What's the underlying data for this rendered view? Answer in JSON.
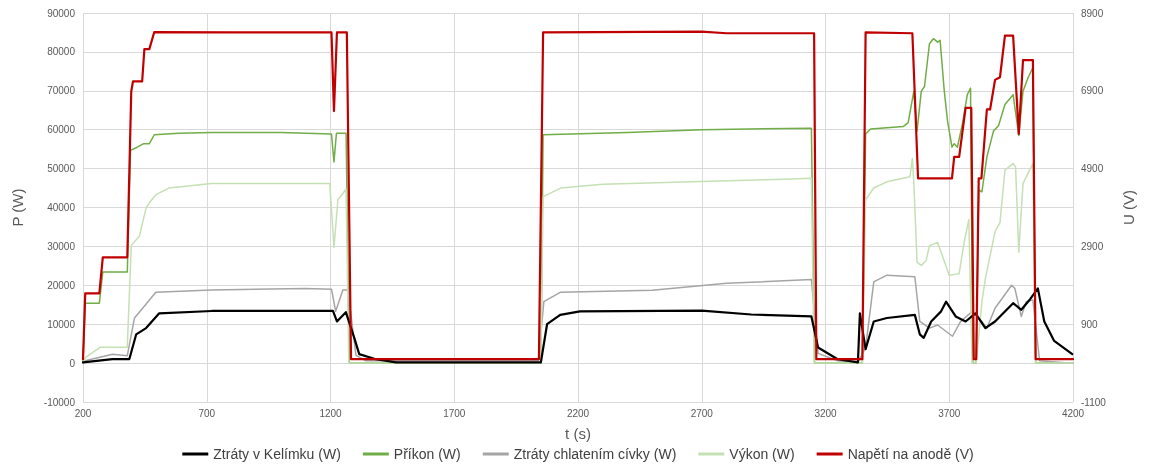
{
  "chart_data": {
    "type": "line",
    "xlabel": "t (s)",
    "ylabel": "P (W)",
    "y2label": "U (V)",
    "xlim": [
      200,
      4200
    ],
    "xticks": [
      200,
      700,
      1200,
      1700,
      2200,
      2700,
      3200,
      3700,
      4200
    ],
    "ylim": [
      -10000,
      90000
    ],
    "yticks": [
      -10000,
      0,
      10000,
      20000,
      30000,
      40000,
      50000,
      60000,
      70000,
      80000,
      90000
    ],
    "y2lim": [
      -1100,
      8900
    ],
    "y2ticks": [
      -1100,
      900,
      2900,
      4900,
      6900,
      8900
    ],
    "grid": true,
    "legend": "bottom",
    "marker": "none",
    "line_style": "solid",
    "series": [
      {
        "name": "Ztráty v Kelímku (W)",
        "color": "#000000",
        "x": [
          200,
          319,
          387,
          415,
          455,
          508,
          720,
          1210,
          1226,
          1262,
          1297,
          1316,
          1383,
          1465,
          2050,
          2075,
          2128,
          2208,
          2700,
          2900,
          3143,
          3170,
          3249,
          3331,
          3339,
          3362,
          3395,
          3448,
          3561,
          3581,
          3597,
          3627,
          3667,
          3687,
          3726,
          3766,
          3806,
          3846,
          3885,
          3958,
          3991,
          4024,
          4058,
          4084,
          4124,
          4197
        ],
        "values": [
          200,
          1000,
          1000,
          7400,
          9000,
          12800,
          13400,
          13400,
          10700,
          13100,
          6300,
          2300,
          1000,
          200,
          200,
          10000,
          12400,
          13300,
          13500,
          12500,
          12000,
          4000,
          1000,
          200,
          12800,
          3600,
          10700,
          11600,
          12400,
          7400,
          6500,
          10700,
          13300,
          15800,
          12000,
          10700,
          12800,
          9000,
          10700,
          15400,
          13700,
          16200,
          19200,
          10700,
          5700,
          2300
        ]
      },
      {
        "name": "Příkon (W)",
        "color": "#70ad47",
        "x": [
          200,
          209,
          266,
          280,
          379,
          392,
          419,
          445,
          468,
          488,
          588,
          720,
          1000,
          1204,
          1214,
          1224,
          1263,
          1276,
          2050,
          2059,
          2400,
          2700,
          3143,
          3156,
          3349,
          3362,
          3382,
          3514,
          3534,
          3557,
          3570,
          3587,
          3600,
          3620,
          3636,
          3653,
          3663,
          3680,
          3693,
          3711,
          3720,
          3733,
          3753,
          3773,
          3786,
          3795,
          3809,
          3819,
          3832,
          3852,
          3879,
          3899,
          3925,
          3958,
          3981,
          3998,
          4018,
          4038,
          4049,
          4200
        ],
        "values": [
          0,
          15400,
          15400,
          23400,
          23400,
          54700,
          55500,
          56400,
          56400,
          58700,
          59100,
          59300,
          59300,
          58900,
          51700,
          59100,
          59100,
          0,
          0,
          58700,
          59300,
          60000,
          60400,
          0,
          0,
          58900,
          60200,
          60800,
          61800,
          69900,
          59700,
          69900,
          71100,
          82100,
          83400,
          82500,
          83000,
          69900,
          62300,
          55500,
          56400,
          55500,
          61400,
          69000,
          70700,
          0,
          0,
          44500,
          44000,
          53000,
          59700,
          61000,
          66500,
          69000,
          58500,
          69900,
          73300,
          76000,
          0,
          0
        ]
      },
      {
        "name": "Ztráty chlatením cívky (W)",
        "color": "#a5a5a5",
        "x": [
          200,
          209,
          319,
          379,
          408,
          441,
          494,
          720,
          1100,
          1204,
          1221,
          1250,
          1270,
          1303,
          1343,
          2040,
          2062,
          2128,
          2500,
          2800,
          3143,
          3170,
          3249,
          3331,
          3362,
          3395,
          3448,
          3561,
          3581,
          3620,
          3653,
          3713,
          3746,
          3793,
          3832,
          3852,
          3885,
          3952,
          3965,
          3991,
          4011,
          4038,
          4065,
          4180,
          4200
        ],
        "values": [
          0,
          600,
          2300,
          1900,
          11600,
          14100,
          18200,
          18800,
          19200,
          19000,
          13300,
          18800,
          18800,
          2000,
          600,
          600,
          15800,
          18200,
          18700,
          20500,
          21500,
          2500,
          600,
          200,
          4000,
          20900,
          22600,
          22200,
          10700,
          9000,
          9800,
          6900,
          10700,
          13300,
          10700,
          9000,
          14100,
          20000,
          19200,
          12000,
          15800,
          16200,
          600,
          0,
          0
        ]
      },
      {
        "name": "Výkon (W)",
        "color": "#c5e0b4",
        "x": [
          200,
          209,
          270,
          379,
          395,
          428,
          455,
          468,
          495,
          547,
          720,
          1197,
          1214,
          1230,
          1263,
          1274,
          2050,
          2059,
          2130,
          2300,
          3000,
          3143,
          3154,
          3349,
          3362,
          3395,
          3448,
          3541,
          3551,
          3557,
          3570,
          3587,
          3607,
          3620,
          3653,
          3667,
          3700,
          3740,
          3760,
          3779,
          3792,
          3809,
          3832,
          3846,
          3885,
          3905,
          3925,
          3958,
          3968,
          3981,
          3998,
          4038,
          4049,
          4200
        ],
        "values": [
          0,
          1400,
          4100,
          4100,
          30200,
          32700,
          39900,
          41200,
          43300,
          45000,
          46200,
          46200,
          29700,
          42000,
          44700,
          0,
          0,
          42800,
          45000,
          46000,
          47200,
          47500,
          0,
          0,
          42000,
          45000,
          46600,
          47900,
          52600,
          46200,
          25900,
          25100,
          26400,
          30200,
          31000,
          28500,
          22600,
          23000,
          31000,
          36900,
          0,
          0,
          15800,
          21700,
          33800,
          36100,
          49600,
          51300,
          50400,
          28500,
          46200,
          51300,
          0,
          0
        ]
      },
      {
        "name": "Napětí na anodě (V)",
        "color": "#c00000",
        "axis": "y2",
        "x": [
          200,
          209,
          266,
          280,
          379,
          395,
          402,
          439,
          448,
          468,
          488,
          800,
          1204,
          1214,
          1226,
          1266,
          1283,
          2042,
          2059,
          2700,
          2800,
          3154,
          3163,
          3349,
          3362,
          3551,
          3574,
          3711,
          3720,
          3740,
          3766,
          3789,
          3799,
          3809,
          3819,
          3830,
          3852,
          3865,
          3885,
          3905,
          3925,
          3958,
          3981,
          3998,
          4038,
          4049,
          4200
        ],
        "values": [
          0,
          1690,
          1690,
          2620,
          2620,
          6890,
          7140,
          7140,
          7970,
          7970,
          8410,
          8400,
          8400,
          6380,
          8400,
          8400,
          0,
          0,
          8400,
          8420,
          8380,
          8380,
          0,
          0,
          8400,
          8380,
          4650,
          4650,
          5200,
          5200,
          6460,
          6460,
          0,
          0,
          4650,
          4650,
          6420,
          6420,
          7180,
          7250,
          8320,
          8320,
          5790,
          7690,
          7690,
          0,
          0
        ]
      }
    ]
  }
}
